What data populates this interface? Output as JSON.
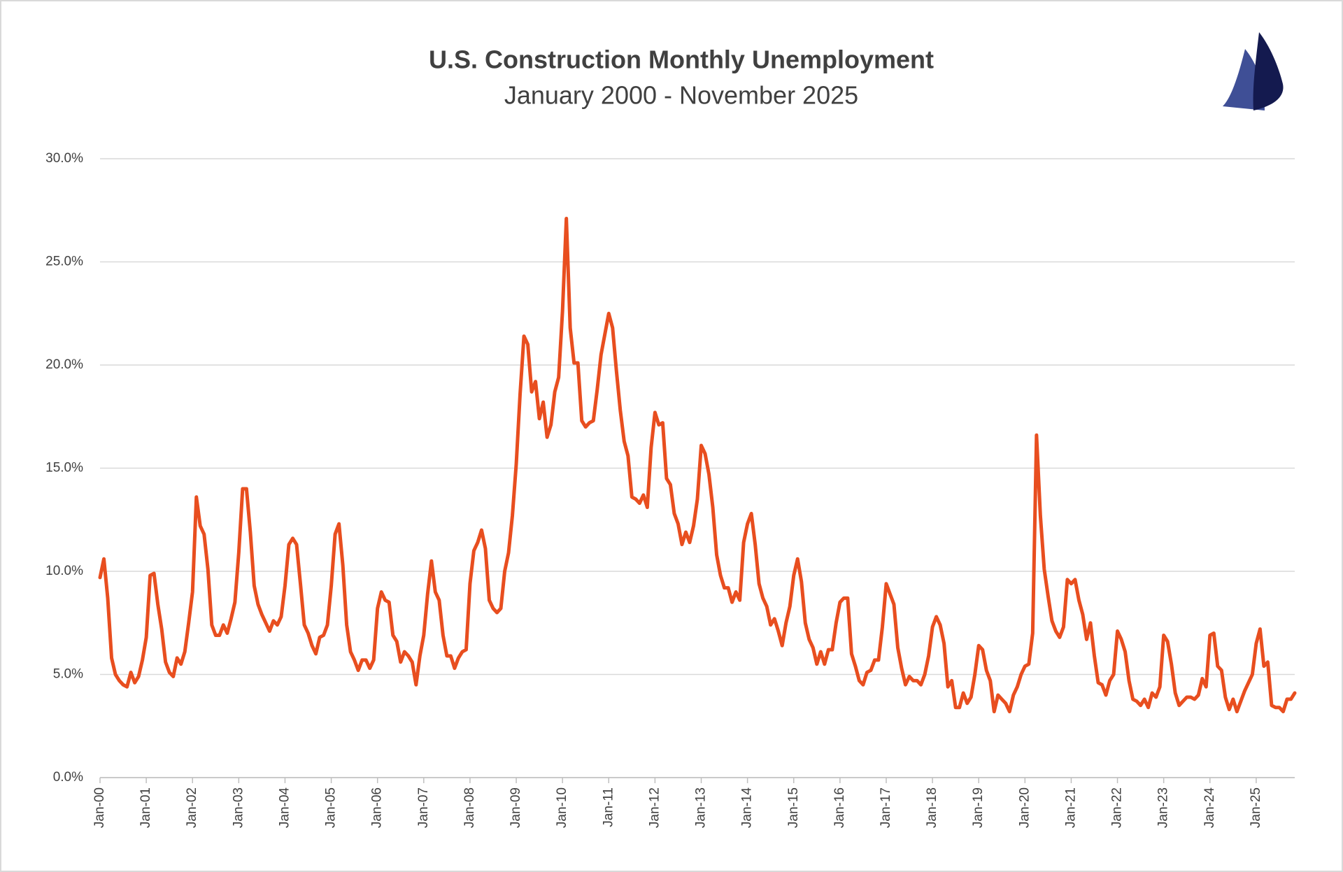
{
  "chart_data": {
    "type": "line",
    "title": "U.S. Construction Monthly Unemployment",
    "subtitle": "January 2000 - November 2025",
    "color": "#e84e1f",
    "grid": true,
    "ylim": [
      0,
      30
    ],
    "yticks": [
      {
        "value": 0,
        "label": "0.0%"
      },
      {
        "value": 5,
        "label": "5.0%"
      },
      {
        "value": 10,
        "label": "10.0%"
      },
      {
        "value": 15,
        "label": "15.0%"
      },
      {
        "value": 20,
        "label": "20.0%"
      },
      {
        "value": 25,
        "label": "25.0%"
      },
      {
        "value": 30,
        "label": "30.0%"
      }
    ],
    "categories": [
      "Jan-00",
      null,
      null,
      null,
      null,
      null,
      null,
      null,
      null,
      null,
      null,
      null,
      "Jan-01",
      null,
      null,
      null,
      null,
      null,
      null,
      null,
      null,
      null,
      null,
      null,
      "Jan-02",
      null,
      null,
      null,
      null,
      null,
      null,
      null,
      null,
      null,
      null,
      null,
      "Jan-03",
      null,
      null,
      null,
      null,
      null,
      null,
      null,
      null,
      null,
      null,
      null,
      "Jan-04",
      null,
      null,
      null,
      null,
      null,
      null,
      null,
      null,
      null,
      null,
      null,
      "Jan-05",
      null,
      null,
      null,
      null,
      null,
      null,
      null,
      null,
      null,
      null,
      null,
      "Jan-06",
      null,
      null,
      null,
      null,
      null,
      null,
      null,
      null,
      null,
      null,
      null,
      "Jan-07",
      null,
      null,
      null,
      null,
      null,
      null,
      null,
      null,
      null,
      null,
      null,
      "Jan-08",
      null,
      null,
      null,
      null,
      null,
      null,
      null,
      null,
      null,
      null,
      null,
      "Jan-09",
      null,
      null,
      null,
      null,
      null,
      null,
      null,
      null,
      null,
      null,
      null,
      "Jan-10",
      null,
      null,
      null,
      null,
      null,
      null,
      null,
      null,
      null,
      null,
      null,
      "Jan-11",
      null,
      null,
      null,
      null,
      null,
      null,
      null,
      null,
      null,
      null,
      null,
      "Jan-12",
      null,
      null,
      null,
      null,
      null,
      null,
      null,
      null,
      null,
      null,
      null,
      "Jan-13",
      null,
      null,
      null,
      null,
      null,
      null,
      null,
      null,
      null,
      null,
      null,
      "Jan-14",
      null,
      null,
      null,
      null,
      null,
      null,
      null,
      null,
      null,
      null,
      null,
      "Jan-15",
      null,
      null,
      null,
      null,
      null,
      null,
      null,
      null,
      null,
      null,
      null,
      "Jan-16",
      null,
      null,
      null,
      null,
      null,
      null,
      null,
      null,
      null,
      null,
      null,
      "Jan-17",
      null,
      null,
      null,
      null,
      null,
      null,
      null,
      null,
      null,
      null,
      null,
      "Jan-18",
      null,
      null,
      null,
      null,
      null,
      null,
      null,
      null,
      null,
      null,
      null,
      "Jan-19",
      null,
      null,
      null,
      null,
      null,
      null,
      null,
      null,
      null,
      null,
      null,
      "Jan-20",
      null,
      null,
      null,
      null,
      null,
      null,
      null,
      null,
      null,
      null,
      null,
      "Jan-21",
      null,
      null,
      null,
      null,
      null,
      null,
      null,
      null,
      null,
      null,
      null,
      "Jan-22",
      null,
      null,
      null,
      null,
      null,
      null,
      null,
      null,
      null,
      null,
      null,
      "Jan-23",
      null,
      null,
      null,
      null,
      null,
      null,
      null,
      null,
      null,
      null,
      null,
      "Jan-24",
      null,
      null,
      null,
      null,
      null,
      null,
      null,
      null,
      null,
      null,
      null,
      "Jan-25",
      null,
      null,
      null,
      null,
      null,
      null,
      null,
      null,
      null,
      null
    ],
    "values": [
      9.7,
      10.6,
      8.7,
      5.8,
      5.0,
      4.7,
      4.5,
      4.4,
      5.1,
      4.6,
      4.9,
      5.7,
      6.8,
      9.8,
      9.9,
      8.4,
      7.2,
      5.6,
      5.1,
      4.9,
      5.8,
      5.5,
      6.1,
      7.5,
      9.0,
      13.6,
      12.2,
      11.8,
      10.1,
      7.4,
      6.9,
      6.9,
      7.4,
      7.0,
      7.7,
      8.5,
      10.9,
      14.0,
      14.0,
      11.9,
      9.3,
      8.4,
      7.9,
      7.5,
      7.1,
      7.6,
      7.4,
      7.8,
      9.3,
      11.3,
      11.6,
      11.3,
      9.4,
      7.4,
      7.0,
      6.4,
      6.0,
      6.8,
      6.9,
      7.4,
      9.3,
      11.8,
      12.3,
      10.3,
      7.4,
      6.1,
      5.7,
      5.2,
      5.7,
      5.7,
      5.3,
      5.7,
      8.2,
      9.0,
      8.6,
      8.5,
      6.9,
      6.6,
      5.6,
      6.1,
      5.9,
      5.6,
      4.5,
      5.9,
      6.9,
      8.9,
      10.5,
      9.0,
      8.6,
      6.9,
      5.9,
      5.9,
      5.3,
      5.8,
      6.1,
      6.2,
      9.4,
      11.0,
      11.4,
      12.0,
      11.1,
      8.6,
      8.2,
      8.0,
      8.2,
      10.0,
      10.9,
      12.7,
      15.2,
      18.6,
      21.4,
      21.0,
      18.7,
      19.2,
      17.4,
      18.2,
      16.5,
      17.1,
      18.7,
      19.4,
      22.6,
      27.1,
      21.8,
      20.1,
      20.1,
      17.3,
      17.0,
      17.2,
      17.3,
      18.8,
      20.5,
      21.5,
      22.5,
      21.8,
      19.7,
      17.8,
      16.3,
      15.6,
      13.6,
      13.5,
      13.3,
      13.7,
      13.1,
      16.0,
      17.7,
      17.1,
      17.2,
      14.5,
      14.2,
      12.8,
      12.3,
      11.3,
      11.9,
      11.4,
      12.2,
      13.5,
      16.1,
      15.7,
      14.7,
      13.1,
      10.8,
      9.8,
      9.2,
      9.2,
      8.5,
      9.0,
      8.6,
      11.4,
      12.3,
      12.8,
      11.3,
      9.4,
      8.7,
      8.3,
      7.4,
      7.7,
      7.1,
      6.4,
      7.5,
      8.3,
      9.8,
      10.6,
      9.5,
      7.5,
      6.7,
      6.3,
      5.5,
      6.1,
      5.5,
      6.2,
      6.2,
      7.5,
      8.5,
      8.7,
      8.7,
      6.0,
      5.4,
      4.7,
      4.5,
      5.1,
      5.2,
      5.7,
      5.7,
      7.3,
      9.4,
      8.9,
      8.4,
      6.3,
      5.3,
      4.5,
      4.9,
      4.7,
      4.7,
      4.5,
      5.0,
      5.9,
      7.3,
      7.8,
      7.4,
      6.5,
      4.4,
      4.7,
      3.4,
      3.4,
      4.1,
      3.6,
      3.9,
      5.0,
      6.4,
      6.2,
      5.2,
      4.7,
      3.2,
      4.0,
      3.8,
      3.6,
      3.2,
      4.0,
      4.4,
      5.0,
      5.4,
      5.5,
      7.0,
      16.6,
      12.7,
      10.1,
      8.8,
      7.6,
      7.1,
      6.8,
      7.3,
      9.6,
      9.4,
      9.6,
      8.6,
      7.9,
      6.7,
      7.5,
      5.9,
      4.6,
      4.5,
      4.0,
      4.7,
      5.0,
      7.1,
      6.7,
      6.1,
      4.7,
      3.8,
      3.7,
      3.5,
      3.8,
      3.4,
      4.1,
      3.9,
      4.4,
      6.9,
      6.6,
      5.5,
      4.1,
      3.5,
      3.7,
      3.9,
      3.9,
      3.8,
      4.0,
      4.8,
      4.4,
      6.9,
      7.0,
      5.4,
      5.2,
      3.9,
      3.3,
      3.8,
      3.2,
      3.7,
      4.2,
      4.6,
      5.0,
      6.5,
      7.2,
      5.4,
      5.6,
      3.5,
      3.4,
      3.4,
      3.2,
      3.8,
      3.8,
      4.1
    ]
  }
}
